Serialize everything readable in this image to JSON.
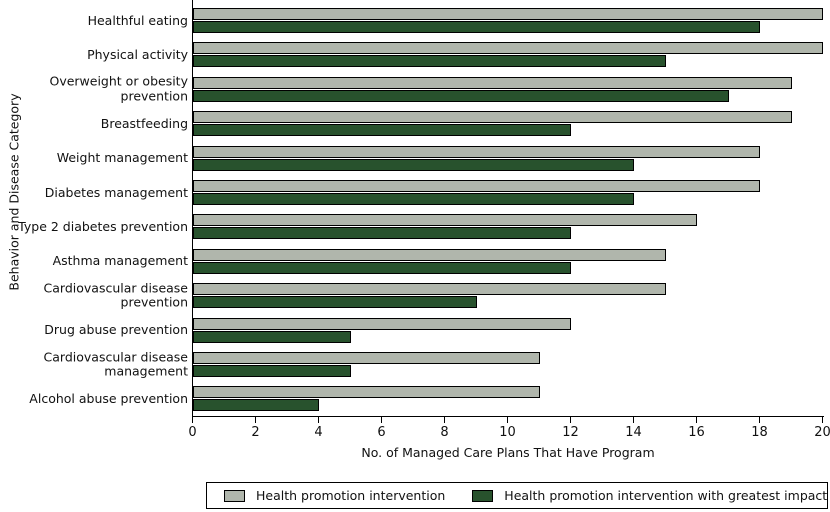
{
  "chart_data": {
    "type": "bar",
    "orientation": "horizontal",
    "title": "",
    "xlabel": "No. of Managed Care Plans That Have Program",
    "ylabel": "Behavior and Disease Category",
    "xlim": [
      0,
      20
    ],
    "xticks": [
      0,
      2,
      4,
      6,
      8,
      10,
      12,
      14,
      16,
      18,
      20
    ],
    "grid": false,
    "legend_position": "bottom",
    "categories": [
      "Healthful eating",
      "Physical activity",
      "Overweight or obesity prevention",
      "Breastfeeding",
      "Weight management",
      "Diabetes management",
      "Type 2 diabetes prevention",
      "Asthma management",
      "Cardiovascular disease prevention",
      "Drug abuse prevention",
      "Cardiovascular disease management",
      "Alcohol abuse prevention"
    ],
    "series": [
      {
        "name": "Health promotion intervention",
        "color": "#b0b6ac",
        "values": [
          20,
          20,
          19,
          19,
          18,
          18,
          16,
          15,
          15,
          12,
          11,
          11
        ]
      },
      {
        "name": "Health promotion intervention with greatest impact",
        "color": "#28522d",
        "values": [
          18,
          15,
          17,
          12,
          14,
          14,
          12,
          12,
          9,
          5,
          5,
          4
        ]
      }
    ],
    "bar_border_color": "#000000"
  }
}
